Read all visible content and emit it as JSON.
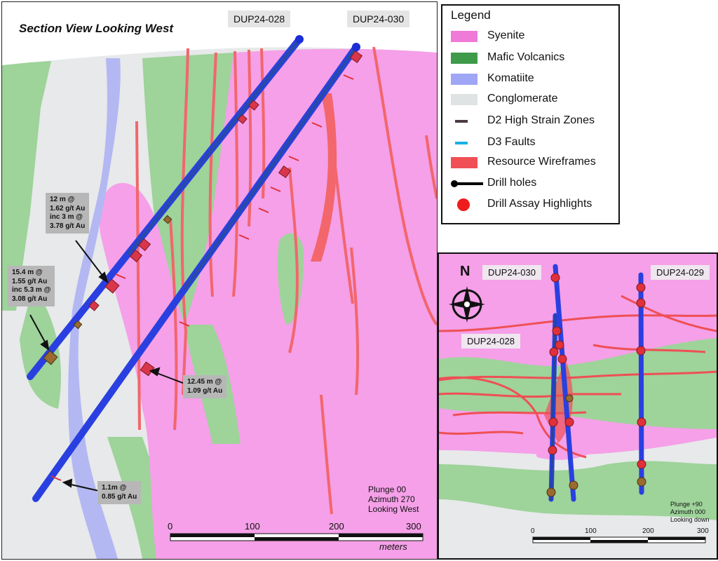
{
  "title": "Section View Looking West",
  "drill_holes_main": [
    "DUP24-028",
    "DUP24-030"
  ],
  "intercepts": [
    {
      "lines": [
        "12 m @",
        "1.62 g/t Au",
        "inc 3 m @",
        "3.78 g/t Au"
      ]
    },
    {
      "lines": [
        "15.4 m @",
        "1.55 g/t Au",
        "inc 5.3 m @",
        "3.08 g/t Au"
      ]
    },
    {
      "lines": [
        "12.45 m @",
        "1.09 g/t Au"
      ]
    },
    {
      "lines": [
        "1.1m @",
        "0.85 g/t Au"
      ]
    }
  ],
  "view_meta_main": [
    "Plunge 00",
    "Azimuth 270",
    "Looking West"
  ],
  "scale_main": {
    "ticks": [
      "0",
      "100",
      "200",
      "300"
    ],
    "unit": "meters"
  },
  "legend": {
    "title": "Legend",
    "items": [
      {
        "label": "Syenite",
        "color": "#f07ad8",
        "symbol": "box"
      },
      {
        "label": "Mafic Volcanics",
        "color": "#3f9a4a",
        "symbol": "box"
      },
      {
        "label": "Komatiite",
        "color": "#9fa6f6",
        "symbol": "box"
      },
      {
        "label": "Conglomerate",
        "color": "#dfe3e4",
        "symbol": "box"
      },
      {
        "label": "D2 High Strain Zones",
        "color": "#4b3a44",
        "symbol": "dash"
      },
      {
        "label": "D3 Faults",
        "color": "#17b1e6",
        "symbol": "dash"
      },
      {
        "label": "Resource Wireframes",
        "color": "#ef4f55",
        "symbol": "box"
      },
      {
        "label": "Drill holes",
        "color": "#000000",
        "symbol": "line-dot"
      },
      {
        "label": "Drill Assay Highlights",
        "color": "#ee1c1c",
        "symbol": "dot"
      }
    ]
  },
  "inset": {
    "north_label": "N",
    "drill_holes": [
      "DUP24-030",
      "DUP24-029",
      "DUP24-028"
    ],
    "view_meta": [
      "Plunge +90",
      "Azimuth 000",
      "Looking down"
    ],
    "scale_ticks": [
      "0",
      "100",
      "200",
      "300"
    ]
  }
}
